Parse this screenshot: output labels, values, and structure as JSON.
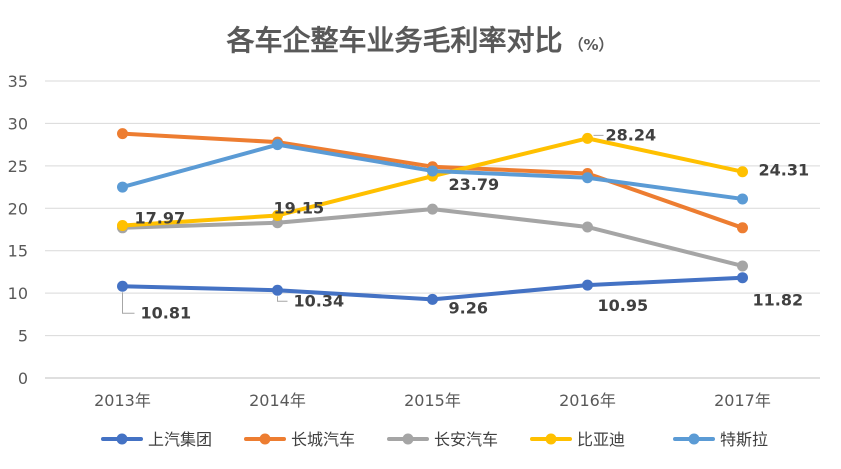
{
  "chart_data": {
    "type": "line",
    "title": "各车企整车业务毛利率对比",
    "title_unit": "（%）",
    "categories": [
      "2013年",
      "2014年",
      "2015年",
      "2016年",
      "2017年"
    ],
    "ylim": [
      0,
      35
    ],
    "yticks": [
      "0",
      "5",
      "10",
      "15",
      "20",
      "25",
      "30",
      "35"
    ],
    "grid": true,
    "legend_position": "bottom",
    "series": [
      {
        "name": "上汽集团",
        "color": "#4472C4",
        "values": [
          10.81,
          10.34,
          9.26,
          10.95,
          11.82
        ]
      },
      {
        "name": "长城汽车",
        "color": "#ED7D31",
        "values": [
          28.8,
          27.8,
          24.9,
          24.1,
          17.7
        ]
      },
      {
        "name": "长安汽车",
        "color": "#A5A5A5",
        "values": [
          17.7,
          18.3,
          19.9,
          17.8,
          13.2
        ]
      },
      {
        "name": "比亚迪",
        "color": "#FFC000",
        "values": [
          17.97,
          19.15,
          23.79,
          28.24,
          24.31
        ]
      },
      {
        "name": "特斯拉",
        "color": "#5B9BD5",
        "values": [
          22.5,
          27.5,
          24.4,
          23.6,
          21.1
        ]
      }
    ],
    "data_labels": [
      {
        "series": 0,
        "index": 0,
        "text": "10.81"
      },
      {
        "series": 0,
        "index": 1,
        "text": "10.34"
      },
      {
        "series": 0,
        "index": 2,
        "text": "9.26"
      },
      {
        "series": 0,
        "index": 3,
        "text": "10.95"
      },
      {
        "series": 0,
        "index": 4,
        "text": "11.82"
      },
      {
        "series": 3,
        "index": 0,
        "text": "17.97"
      },
      {
        "series": 3,
        "index": 1,
        "text": "19.15"
      },
      {
        "series": 3,
        "index": 2,
        "text": "23.79"
      },
      {
        "series": 3,
        "index": 3,
        "text": "28.24"
      },
      {
        "series": 3,
        "index": 4,
        "text": "24.31"
      }
    ]
  }
}
